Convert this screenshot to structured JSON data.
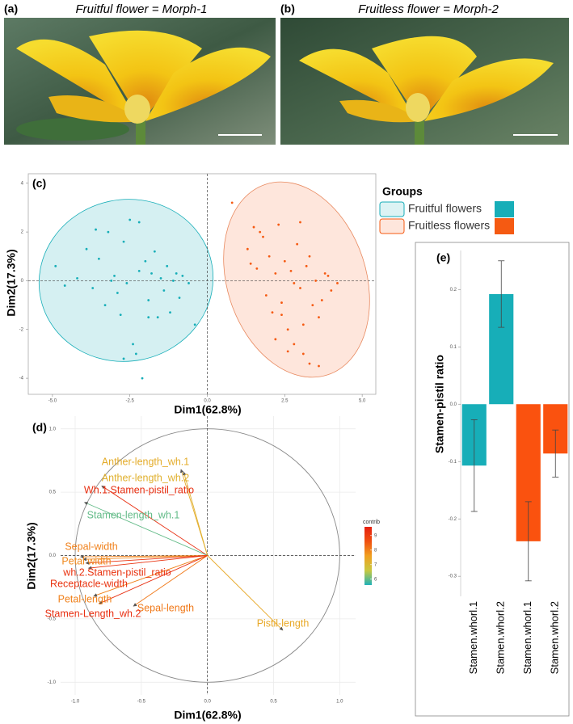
{
  "panels": [
    {
      "label": "(a)",
      "caption": "Fruitful flower = Morph-1"
    },
    {
      "label": "(b)",
      "caption": "Fruitless flower = Morph-2"
    }
  ],
  "chart_data": [
    {
      "type": "scatter",
      "panel_label": "(c)",
      "xlabel": "Dim1(62.8%)",
      "ylabel": "Dim2(17.3%)",
      "xlim": [
        -5.78,
        5.44
      ],
      "ylim": [
        -4.66,
        4.39
      ],
      "xticks": [
        {
          "value": -5,
          "label": "-5.0"
        },
        -2.5,
        {
          "value": 0,
          "label": "0.0"
        },
        2.5,
        {
          "value": 5,
          "label": "5.0"
        }
      ],
      "yticks": [
        -4,
        -2,
        0,
        2,
        4
      ],
      "reference_lines": {
        "x": 0,
        "y": 0
      },
      "legend_title": "Groups",
      "series": [
        {
          "name": "Fruitful flowers",
          "color": "#17aeb8",
          "x": [
            -4.9,
            -4.6,
            -4.2,
            -3.9,
            -3.7,
            -3.5,
            -3.3,
            -3.2,
            -3.0,
            -2.9,
            -2.8,
            -2.7,
            -2.6,
            -2.5,
            -2.4,
            -2.3,
            -2.2,
            -2.1,
            -2.0,
            -1.9,
            -1.8,
            -1.7,
            -1.6,
            -1.5,
            -1.4,
            -1.3,
            -1.2,
            -1.1,
            -1.0,
            -0.9,
            -0.8,
            -0.6,
            -0.4,
            -3.6,
            -2.7,
            -2.2,
            -1.9,
            -3.1
          ],
          "y": [
            0.6,
            -0.2,
            0.1,
            1.3,
            -0.3,
            0.9,
            -1.0,
            2.0,
            0.2,
            -0.5,
            -1.4,
            1.6,
            -0.1,
            2.5,
            -2.6,
            -3.0,
            0.4,
            -4.0,
            0.8,
            -0.8,
            0.3,
            1.2,
            -1.5,
            0.1,
            -0.4,
            0.6,
            -1.3,
            0.0,
            0.3,
            -0.7,
            0.2,
            -0.1,
            -1.8,
            2.1,
            -3.2,
            2.4,
            -1.5,
            0.0
          ]
        },
        {
          "name": "Fruitless flowers",
          "color": "#f55a12",
          "x": [
            0.8,
            1.3,
            1.5,
            1.6,
            1.8,
            1.9,
            2.0,
            2.1,
            2.2,
            2.3,
            2.4,
            2.5,
            2.6,
            2.7,
            2.8,
            2.9,
            3.0,
            3.1,
            3.2,
            3.3,
            3.4,
            3.5,
            3.6,
            3.7,
            3.8,
            4.0,
            4.2,
            1.7,
            2.4,
            3.0,
            3.3,
            2.2,
            2.8,
            3.6,
            1.4,
            2.6,
            3.9,
            3.1
          ],
          "y": [
            3.2,
            1.3,
            2.2,
            0.5,
            1.8,
            -0.6,
            1.0,
            -1.3,
            0.3,
            2.3,
            -0.9,
            0.8,
            -2.0,
            0.4,
            -2.6,
            1.5,
            -0.3,
            -1.8,
            0.6,
            -3.4,
            -1.0,
            0.0,
            -3.5,
            -0.8,
            0.3,
            -0.4,
            -0.1,
            2.0,
            -1.4,
            2.4,
            1.0,
            -2.4,
            -0.1,
            -1.5,
            0.7,
            -2.9,
            0.2,
            -3.0
          ]
        }
      ]
    },
    {
      "type": "vector",
      "panel_label": "(d)",
      "xlabel": "Dim1(62.8%)",
      "ylabel": "Dim2(17.3%)",
      "xlim": [
        -1.11,
        1.12
      ],
      "ylim": [
        -1.1,
        1.1
      ],
      "xticks": [
        {
          "value": -1,
          "label": "-1.0"
        },
        -0.5,
        {
          "value": 0,
          "label": "0.0"
        },
        0.5,
        {
          "value": 1,
          "label": "1.0"
        }
      ],
      "yticks": [
        {
          "value": -1,
          "label": "-1.0"
        },
        -0.5,
        {
          "value": 0,
          "label": "0.0"
        },
        0.5,
        {
          "value": 1,
          "label": "1.0"
        }
      ],
      "grid": true,
      "reference_lines": {
        "x": 0,
        "y": 0
      },
      "circle_radius": 1,
      "variables": [
        "Anther-length_wh.1",
        "Anther-length_wh.2",
        "Wh.1.Stamen-pistil_ratio",
        "Stamen-length_wh.1",
        "Sepal-width",
        "Petal width",
        "wh.2.Stamen-pistil_ratio",
        "Receptacle-width",
        "Petal-length",
        "Sepal-length",
        "Stamen-Length_wh.2",
        "Pistil-length"
      ],
      "x": [
        -0.2,
        -0.18,
        -0.8,
        -0.93,
        -0.96,
        -0.94,
        -0.92,
        -0.9,
        -0.86,
        -0.56,
        -0.82,
        0.57
      ],
      "y": [
        0.68,
        0.66,
        0.55,
        0.42,
        -0.01,
        -0.03,
        -0.06,
        -0.1,
        -0.32,
        -0.4,
        -0.38,
        -0.59
      ],
      "contrib": [
        7.3,
        7.2,
        9.3,
        6.0,
        8.0,
        7.9,
        9.2,
        9.2,
        8.0,
        8.1,
        9.3,
        7.4
      ],
      "colorbar_title": "contrib",
      "clim": [
        5.6,
        9.6
      ],
      "cticks": [
        6,
        7,
        8,
        9
      ],
      "color_scale": [
        "#20b2b8",
        "#c8c840",
        "#f0a020",
        "#f05010",
        "#e52010"
      ]
    },
    {
      "type": "bar",
      "panel_label": "(e)",
      "ylabel": "Stamen-pistil ratio",
      "categories": [
        "Stamen.whorl.1",
        "Stamen.whorl.2",
        "Stamen.whorl.1",
        "Stamen.whorl.2"
      ],
      "values": [
        -0.107,
        0.192,
        -0.239,
        -0.086
      ],
      "errors": [
        0.08,
        0.058,
        0.069,
        0.041
      ],
      "colors": [
        "#17aeb8",
        "#17aeb8",
        "#fa520f",
        "#fa520f"
      ],
      "ylim": [
        -0.335,
        0.268
      ],
      "yticks": [
        -0.3,
        -0.2,
        -0.1,
        {
          "value": 0,
          "label": "0.0"
        },
        0.1,
        0.2
      ]
    }
  ]
}
